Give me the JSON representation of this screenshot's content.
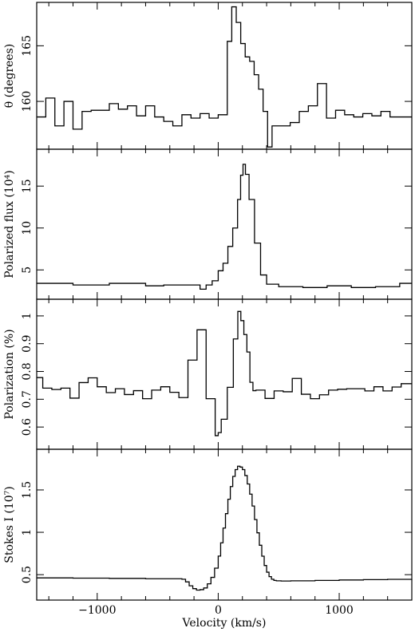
{
  "chart_data": [
    {
      "type": "line",
      "step": true,
      "ylabel": "θ (degrees)",
      "yticks": [
        160,
        165
      ],
      "ylim": [
        155.7,
        168.9
      ],
      "x": [
        -1500,
        -1425,
        -1350,
        -1275,
        -1200,
        -1125,
        -1050,
        -975,
        -900,
        -825,
        -750,
        -675,
        -600,
        -525,
        -450,
        -375,
        -300,
        -225,
        -150,
        -75,
        0,
        75,
        112,
        149,
        186,
        223,
        260,
        297,
        334,
        371,
        408,
        445,
        520,
        595,
        670,
        745,
        820,
        895,
        970,
        1045,
        1120,
        1195,
        1270,
        1345,
        1420,
        1495,
        1570,
        1600
      ],
      "values": [
        158.6,
        160.3,
        157.8,
        160.0,
        157.5,
        159.1,
        159.2,
        159.2,
        159.8,
        159.3,
        159.6,
        158.7,
        159.6,
        158.6,
        158.2,
        157.8,
        158.8,
        158.5,
        158.9,
        158.5,
        158.8,
        165.4,
        168.5,
        167.1,
        165.2,
        164.0,
        163.6,
        162.4,
        161.1,
        159.1,
        155.9,
        157.8,
        157.8,
        158.1,
        159.1,
        159.6,
        161.6,
        158.5,
        159.2,
        158.8,
        158.6,
        158.9,
        158.7,
        159.1,
        158.6,
        158.6,
        158.6,
        158.6
      ]
    },
    {
      "type": "line",
      "step": true,
      "ylabel": "Polarized flux (10⁴)",
      "yticks": [
        5,
        10,
        15
      ],
      "ylim": [
        1.5,
        19.4
      ],
      "x": [
        -1500,
        -1200,
        -900,
        -600,
        -450,
        -300,
        -150,
        -100,
        -50,
        0,
        40,
        80,
        120,
        160,
        185,
        205,
        225,
        255,
        300,
        350,
        400,
        500,
        700,
        900,
        1100,
        1300,
        1500,
        1600
      ],
      "values": [
        3.4,
        3.2,
        3.4,
        3.1,
        3.2,
        3.2,
        2.7,
        3.2,
        3.7,
        4.9,
        5.8,
        7.8,
        10.0,
        13.4,
        16.3,
        17.6,
        16.4,
        13.4,
        8.2,
        4.4,
        3.3,
        3.0,
        2.9,
        3.1,
        2.9,
        3.0,
        3.4,
        3.4
      ]
    },
    {
      "type": "line",
      "step": true,
      "ylabel": "Polarization (%)",
      "yticks": [
        0.6,
        0.7,
        0.8,
        0.9,
        1.0
      ],
      "ylim": [
        0.52,
        1.06
      ],
      "x": [
        -1500,
        -1450,
        -1375,
        -1300,
        -1225,
        -1150,
        -1075,
        -1000,
        -925,
        -850,
        -775,
        -700,
        -625,
        -550,
        -475,
        -400,
        -325,
        -250,
        -175,
        -100,
        -25,
        0,
        25,
        75,
        125,
        162,
        187,
        212,
        237,
        262,
        287,
        312,
        387,
        462,
        537,
        612,
        687,
        762,
        837,
        912,
        987,
        1062,
        1137,
        1212,
        1287,
        1362,
        1437,
        1512,
        1600
      ],
      "values": [
        0.778,
        0.74,
        0.735,
        0.74,
        0.704,
        0.76,
        0.777,
        0.745,
        0.724,
        0.738,
        0.717,
        0.731,
        0.702,
        0.733,
        0.745,
        0.725,
        0.706,
        0.841,
        0.95,
        0.702,
        0.569,
        0.58,
        0.628,
        0.743,
        0.917,
        1.016,
        0.983,
        0.933,
        0.87,
        0.761,
        0.731,
        0.733,
        0.703,
        0.73,
        0.727,
        0.775,
        0.718,
        0.702,
        0.716,
        0.733,
        0.736,
        0.738,
        0.738,
        0.73,
        0.745,
        0.73,
        0.744,
        0.756,
        0.756
      ]
    },
    {
      "type": "line",
      "step": true,
      "ylabel": "Stokes I (10⁷)",
      "yticks": [
        0.5,
        1.0,
        1.5
      ],
      "ylim": [
        0.2,
        1.98
      ],
      "x": [
        -1500,
        -1200,
        -900,
        -600,
        -300,
        -270,
        -240,
        -210,
        -180,
        -150,
        -120,
        -90,
        -60,
        -30,
        0,
        20,
        40,
        60,
        80,
        100,
        120,
        140,
        160,
        180,
        200,
        220,
        240,
        260,
        280,
        300,
        320,
        340,
        360,
        380,
        400,
        420,
        440,
        460,
        480,
        520,
        600,
        800,
        1000,
        1200,
        1400,
        1600
      ],
      "values": [
        0.462,
        0.459,
        0.456,
        0.452,
        0.446,
        0.415,
        0.368,
        0.335,
        0.318,
        0.323,
        0.343,
        0.392,
        0.468,
        0.577,
        0.719,
        0.876,
        1.05,
        1.22,
        1.39,
        1.54,
        1.66,
        1.74,
        1.78,
        1.77,
        1.74,
        1.67,
        1.57,
        1.45,
        1.31,
        1.15,
        0.994,
        0.847,
        0.718,
        0.608,
        0.529,
        0.477,
        0.446,
        0.432,
        0.427,
        0.425,
        0.427,
        0.432,
        0.437,
        0.441,
        0.445,
        0.447
      ]
    }
  ],
  "x_axis": {
    "label": "Velocity (km/s)",
    "xlim": [
      -1500,
      1600
    ],
    "ticks": [
      -1000,
      0,
      1000
    ],
    "tick_labels": [
      "−1000",
      "0",
      "1000"
    ]
  }
}
